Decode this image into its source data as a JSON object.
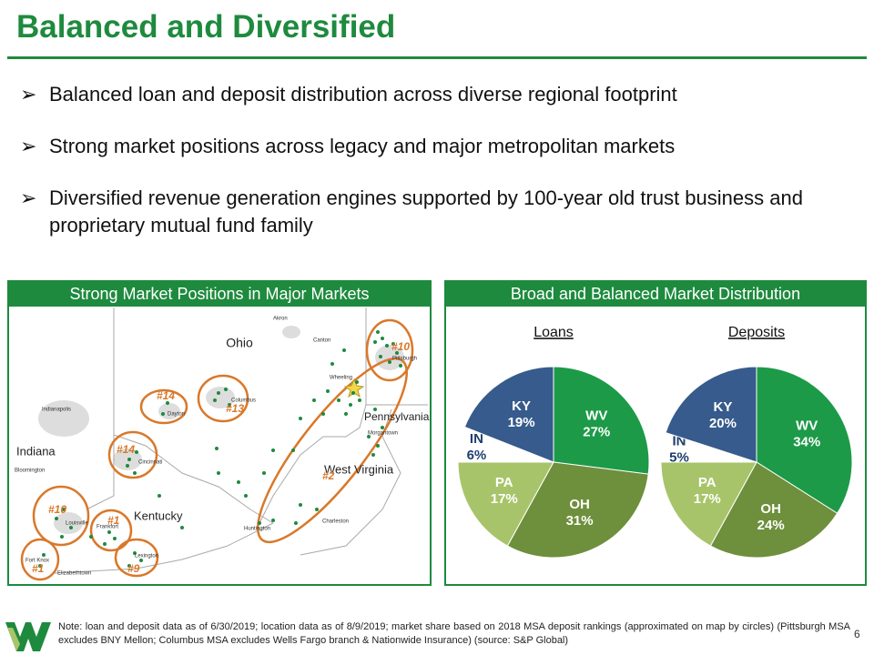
{
  "title": "Balanced and Diversified",
  "bullets": [
    "Balanced loan and deposit distribution across diverse regional footprint",
    "Strong market positions across legacy and major metropolitan markets",
    "Diversified revenue generation engines supported by 100-year old trust business and proprietary mutual fund family"
  ],
  "map": {
    "title": "Strong Market Positions in Major Markets",
    "states": [
      "Ohio",
      "Indiana",
      "Kentucky",
      "Pennsylvania",
      "West Virginia"
    ],
    "cities": [
      "Akron",
      "Canton",
      "Pittsburgh",
      "Wheeling",
      "Columbus",
      "Dayton",
      "Indianapolis",
      "Cincinnati",
      "Bloomington",
      "Morgantown",
      "Louisville",
      "Frankfort",
      "Lexington",
      "Charleston",
      "Huntington",
      "Fort Knox",
      "Elizabethtown"
    ],
    "ranks": [
      "#10",
      "#14",
      "#13",
      "#14",
      "#2",
      "#10",
      "#1",
      "#1",
      "#9"
    ]
  },
  "distribution_title": "Broad and Balanced Market Distribution",
  "chart_data": [
    {
      "type": "pie",
      "title": "Loans",
      "categories": [
        "WV",
        "OH",
        "PA",
        "IN",
        "KY"
      ],
      "values": [
        27,
        31,
        17,
        6,
        19
      ],
      "value_labels": [
        "27%",
        "31%",
        "17%",
        "6%",
        "19%"
      ],
      "colors": [
        "#1c9a48",
        "#6e8f3c",
        "#a8c46a",
        "#ffffff",
        "#365b8c"
      ]
    },
    {
      "type": "pie",
      "title": "Deposits",
      "categories": [
        "WV",
        "OH",
        "PA",
        "IN",
        "KY"
      ],
      "values": [
        34,
        24,
        17,
        5,
        20
      ],
      "value_labels": [
        "34%",
        "24%",
        "17%",
        "5%",
        "20%"
      ],
      "colors": [
        "#1c9a48",
        "#6e8f3c",
        "#a8c46a",
        "#ffffff",
        "#365b8c"
      ]
    }
  ],
  "footnote": "Note: loan and deposit data as of 6/30/2019; location data as of 8/9/2019; market share based on 2018 MSA deposit rankings (approximated on map by circles) (Pittsburgh MSA excludes BNY Mellon; Columbus MSA excludes Wells Fargo branch & Nationwide Insurance) (source: S&P Global)",
  "page_number": "6"
}
